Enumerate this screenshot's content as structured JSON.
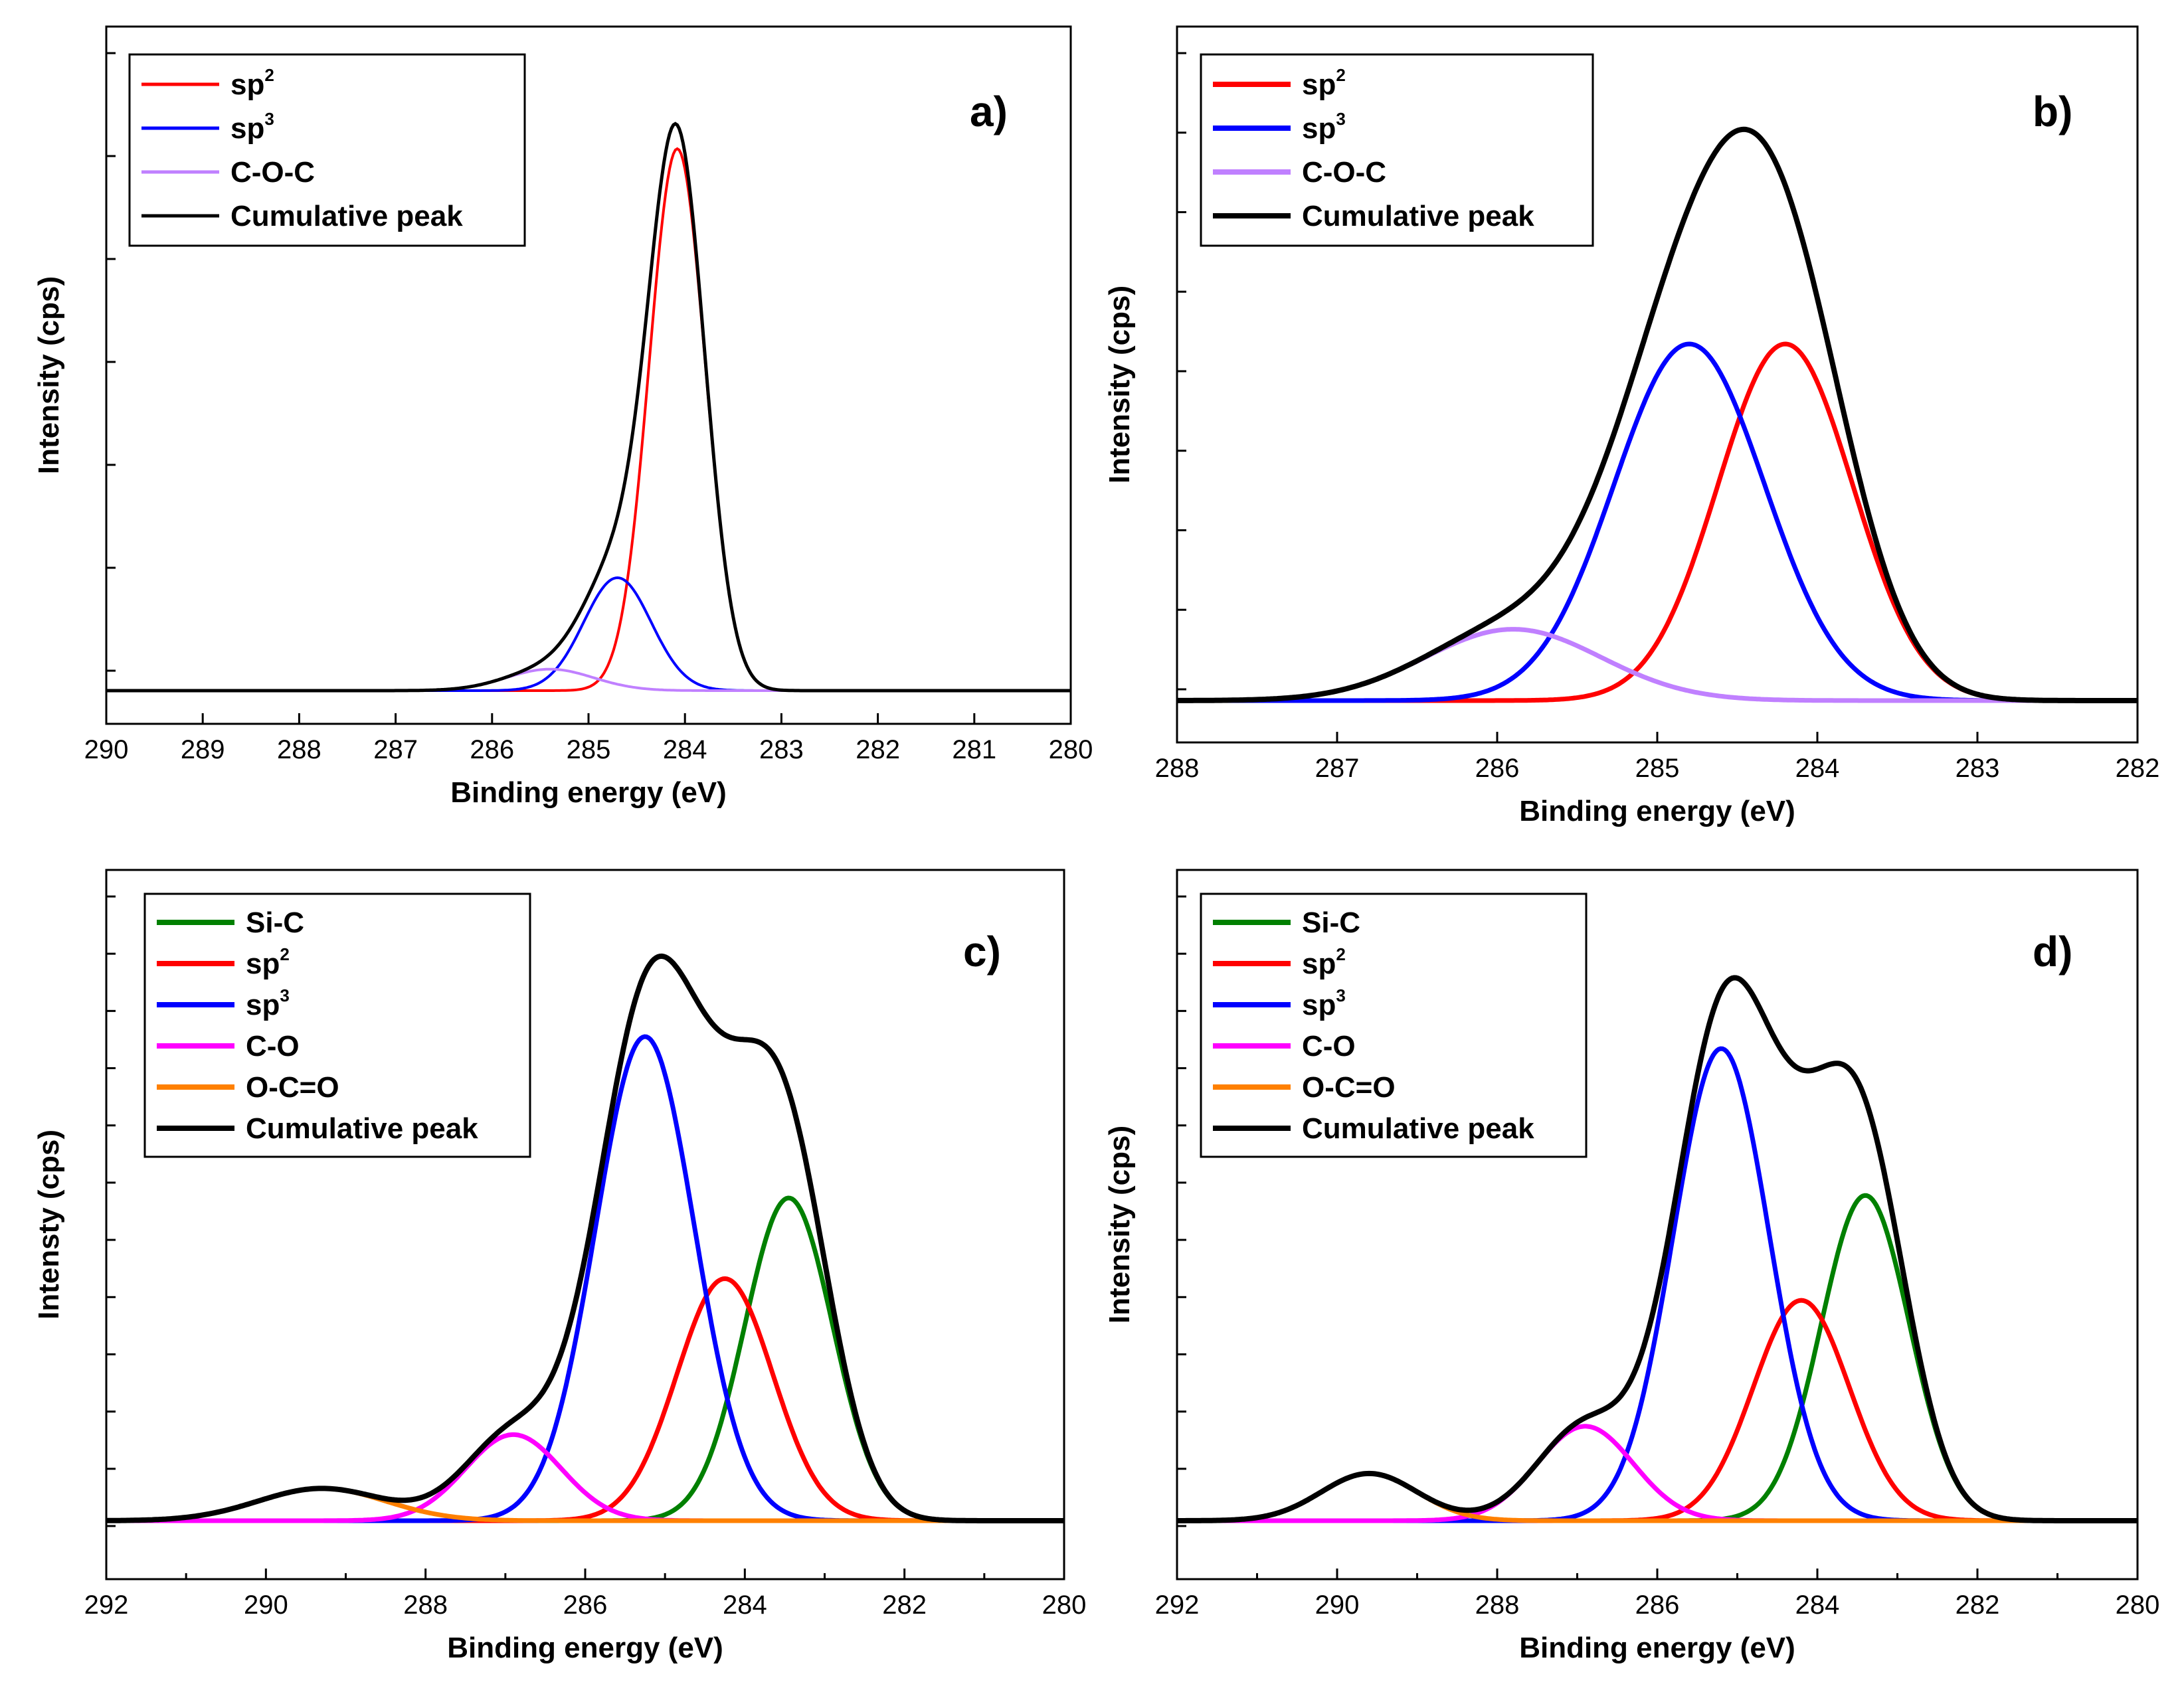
{
  "chart_data": [
    {
      "type": "line",
      "panel": "a)",
      "xlabel": "Binding energy (eV)",
      "ylabel": "Intensity (cps)",
      "xlim": [
        290,
        280
      ],
      "xticks": [
        290,
        289,
        288,
        287,
        286,
        285,
        284,
        283,
        282,
        281,
        280
      ],
      "legend": [
        {
          "name": "sp",
          "sup": "2",
          "color": "#ff0000"
        },
        {
          "name": "sp",
          "sup": "3",
          "color": "#0000ff"
        },
        {
          "name": "C-O-C",
          "sup": "",
          "color": "#c080ff"
        },
        {
          "name": "Cumulative peak",
          "sup": "",
          "color": "#000000"
        }
      ],
      "peaks": [
        {
          "name": "sp2",
          "center": 284.08,
          "height": 0.96,
          "width": 0.29,
          "color": "#ff0000"
        },
        {
          "name": "sp3",
          "center": 284.7,
          "height": 0.2,
          "width": 0.35,
          "color": "#0000ff"
        },
        {
          "name": "C-O-C",
          "center": 285.4,
          "height": 0.038,
          "width": 0.45,
          "color": "#c080ff"
        }
      ]
    },
    {
      "type": "line",
      "panel": "b)",
      "xlabel": "Binding energy (eV)",
      "ylabel": "Intensity (cps)",
      "xlim": [
        288,
        282
      ],
      "xticks": [
        288,
        287,
        286,
        285,
        284,
        283,
        282
      ],
      "legend": [
        {
          "name": "sp",
          "sup": "2",
          "color": "#ff0000"
        },
        {
          "name": "sp",
          "sup": "3",
          "color": "#0000ff"
        },
        {
          "name": "C-O-C",
          "sup": "",
          "color": "#c080ff"
        },
        {
          "name": "Cumulative peak",
          "sup": "",
          "color": "#000000"
        }
      ],
      "peaks": [
        {
          "name": "sp2",
          "center": 284.2,
          "height": 0.6,
          "width": 0.42,
          "color": "#ff0000"
        },
        {
          "name": "sp3",
          "center": 284.8,
          "height": 0.6,
          "width": 0.47,
          "color": "#0000ff"
        },
        {
          "name": "C-O-C",
          "center": 285.9,
          "height": 0.12,
          "width": 0.55,
          "color": "#c080ff"
        }
      ]
    },
    {
      "type": "line",
      "panel": "c)",
      "xlabel": "Binding energy (eV)",
      "ylabel": "Intensty (cps)",
      "xlim": [
        292,
        280
      ],
      "xticks": [
        292,
        290,
        288,
        286,
        284,
        282,
        280
      ],
      "legend": [
        {
          "name": "Si-C",
          "sup": "",
          "color": "#008000"
        },
        {
          "name": "sp",
          "sup": "2",
          "color": "#ff0000"
        },
        {
          "name": "sp",
          "sup": "3",
          "color": "#0000ff"
        },
        {
          "name": "C-O",
          "sup": "",
          "color": "#ff00ff"
        },
        {
          "name": "O-C=O",
          "sup": "",
          "color": "#ff8000"
        },
        {
          "name": "Cumulative peak",
          "sup": "",
          "color": "#000000"
        }
      ],
      "peaks": [
        {
          "name": "Si-C",
          "center": 283.45,
          "height": 0.6,
          "width": 0.55,
          "color": "#008000"
        },
        {
          "name": "sp2",
          "center": 284.25,
          "height": 0.45,
          "width": 0.6,
          "color": "#ff0000"
        },
        {
          "name": "sp3",
          "center": 285.25,
          "height": 0.9,
          "width": 0.62,
          "color": "#0000ff"
        },
        {
          "name": "C-O",
          "center": 286.9,
          "height": 0.16,
          "width": 0.6,
          "color": "#ff00ff"
        },
        {
          "name": "O-C=O",
          "center": 289.3,
          "height": 0.06,
          "width": 0.8,
          "color": "#ff8000"
        }
      ]
    },
    {
      "type": "line",
      "panel": "d)",
      "xlabel": "Binding energy (eV)",
      "ylabel": "Intensity (cps)",
      "xlim": [
        292,
        280
      ],
      "xticks": [
        292,
        290,
        288,
        286,
        284,
        282,
        280
      ],
      "legend": [
        {
          "name": "Si-C",
          "sup": "",
          "color": "#008000"
        },
        {
          "name": "sp",
          "sup": "2",
          "color": "#ff0000"
        },
        {
          "name": "sp",
          "sup": "3",
          "color": "#0000ff"
        },
        {
          "name": "C-O",
          "sup": "",
          "color": "#ff00ff"
        },
        {
          "name": "O-C=O",
          "sup": "",
          "color": "#ff8000"
        },
        {
          "name": "Cumulative peak",
          "sup": "",
          "color": "#000000"
        }
      ],
      "peaks": [
        {
          "name": "Si-C",
          "center": 283.4,
          "height": 0.62,
          "width": 0.55,
          "color": "#008000"
        },
        {
          "name": "sp2",
          "center": 284.2,
          "height": 0.42,
          "width": 0.6,
          "color": "#ff0000"
        },
        {
          "name": "sp3",
          "center": 285.2,
          "height": 0.9,
          "width": 0.6,
          "color": "#0000ff"
        },
        {
          "name": "C-O",
          "center": 286.9,
          "height": 0.18,
          "width": 0.6,
          "color": "#ff00ff"
        },
        {
          "name": "O-C=O",
          "center": 289.6,
          "height": 0.09,
          "width": 0.6,
          "color": "#ff8000"
        }
      ]
    }
  ]
}
